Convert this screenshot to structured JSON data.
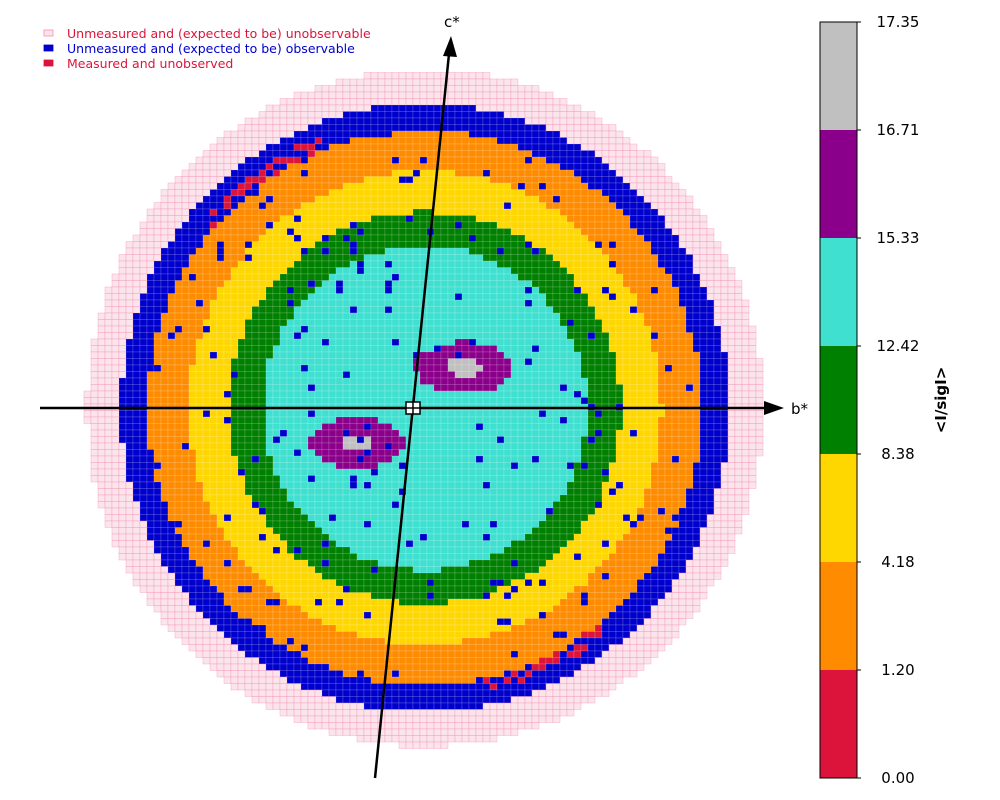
{
  "chart_data": {
    "type": "heatmap",
    "description_type": "reciprocal-space completeness/intensity map (0kl plane)",
    "axes": {
      "horizontal": "b*",
      "vertical": "c*"
    },
    "legend": [
      {
        "label": "Unmeasured and (expected to be) unobservable",
        "color": "#fce4ec",
        "edge": "#f48fb1",
        "text_color": "#dc143c"
      },
      {
        "label": "Unmeasured and (expected to be) observable",
        "color": "#0000cd",
        "edge": "#0000cd",
        "text_color": "#0000cd"
      },
      {
        "label": "Measured and unobserved",
        "color": "#dc143c",
        "edge": "#dc143c",
        "text_color": "#dc143c"
      }
    ],
    "colorbar": {
      "title": "<I/sigI>",
      "ticks": [
        "0.00",
        "1.20",
        "4.18",
        "8.38",
        "12.42",
        "15.33",
        "16.71",
        "17.35"
      ],
      "bands": [
        {
          "from": 0.0,
          "to": 1.2,
          "color": "#dc143c"
        },
        {
          "from": 1.2,
          "to": 4.18,
          "color": "#ff8c00"
        },
        {
          "from": 4.18,
          "to": 8.38,
          "color": "#ffd700"
        },
        {
          "from": 8.38,
          "to": 12.42,
          "color": "#008000"
        },
        {
          "from": 12.42,
          "to": 15.33,
          "color": "#40e0d0"
        },
        {
          "from": 15.33,
          "to": 16.71,
          "color": "#8b008b"
        },
        {
          "from": 16.71,
          "to": 17.35,
          "color": "#c0c0c0"
        }
      ]
    },
    "grid": true
  }
}
